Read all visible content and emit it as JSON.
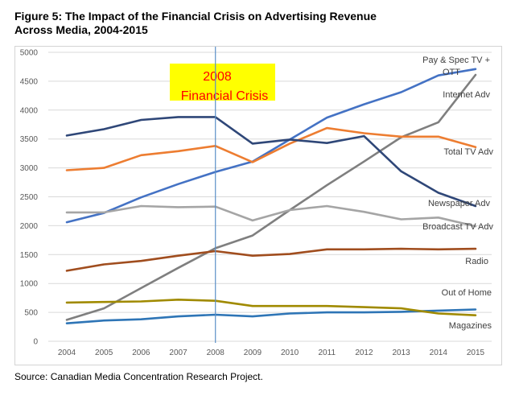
{
  "title_line1": "Figure 5: The Impact of the Financial Crisis on Advertising Revenue",
  "title_line2": "Across Media, 2004-2015",
  "source": "Source: Canadian Media Concentration Research Project.",
  "chart_data": {
    "type": "line",
    "x": [
      "2004",
      "2005",
      "2006",
      "2007",
      "2008",
      "2009",
      "2010",
      "2011",
      "2012",
      "2013",
      "2014",
      "2015"
    ],
    "yticks": [
      "0",
      "500",
      "1000",
      "1500",
      "2000",
      "2500",
      "3000",
      "3500",
      "4000",
      "4500",
      "5000"
    ],
    "ylim": [
      0,
      5000
    ],
    "grid": true,
    "annotation": {
      "line1": "2008",
      "line2": "Financial Crisis",
      "x": "2008",
      "box_color": "#ffff00",
      "text_color": "#ff0000"
    },
    "marker_line": {
      "x": "2008",
      "color": "#5b8fc8"
    },
    "series": [
      {
        "name": "Pay & Spec TV + OTT",
        "color": "#4472c4",
        "values": [
          2060,
          2220,
          2490,
          2720,
          2930,
          3110,
          3490,
          3870,
          4100,
          4310,
          4600,
          4710
        ]
      },
      {
        "name": "Internet Adv",
        "color": "#7f7f7f",
        "values": [
          370,
          570,
          920,
          1270,
          1610,
          1830,
          2270,
          2700,
          3110,
          3530,
          3790,
          4610
        ]
      },
      {
        "name": "Total TV Adv",
        "color": "#ed7d31",
        "values": [
          2960,
          3000,
          3220,
          3290,
          3380,
          3100,
          3420,
          3690,
          3600,
          3540,
          3540,
          3360
        ]
      },
      {
        "name": "Newspaper Adv",
        "color": "#2f4778",
        "values": [
          3560,
          3670,
          3830,
          3880,
          3880,
          3420,
          3490,
          3430,
          3550,
          2940,
          2570,
          2340
        ]
      },
      {
        "name": "Broadcast TV Adv",
        "color": "#a5a5a5",
        "values": [
          2230,
          2230,
          2340,
          2320,
          2330,
          2090,
          2270,
          2340,
          2240,
          2110,
          2140,
          1990
        ]
      },
      {
        "name": "Radio",
        "color": "#a04d1e",
        "values": [
          1220,
          1330,
          1390,
          1480,
          1560,
          1480,
          1510,
          1590,
          1590,
          1600,
          1590,
          1600
        ]
      },
      {
        "name": "Out of Home",
        "color": "#2e75b6",
        "values": [
          310,
          360,
          380,
          430,
          460,
          430,
          480,
          500,
          500,
          510,
          530,
          550
        ]
      },
      {
        "name": "Magazines",
        "color": "#a08a00",
        "values": [
          670,
          680,
          690,
          720,
          700,
          610,
          610,
          610,
          590,
          570,
          480,
          450
        ]
      }
    ]
  }
}
